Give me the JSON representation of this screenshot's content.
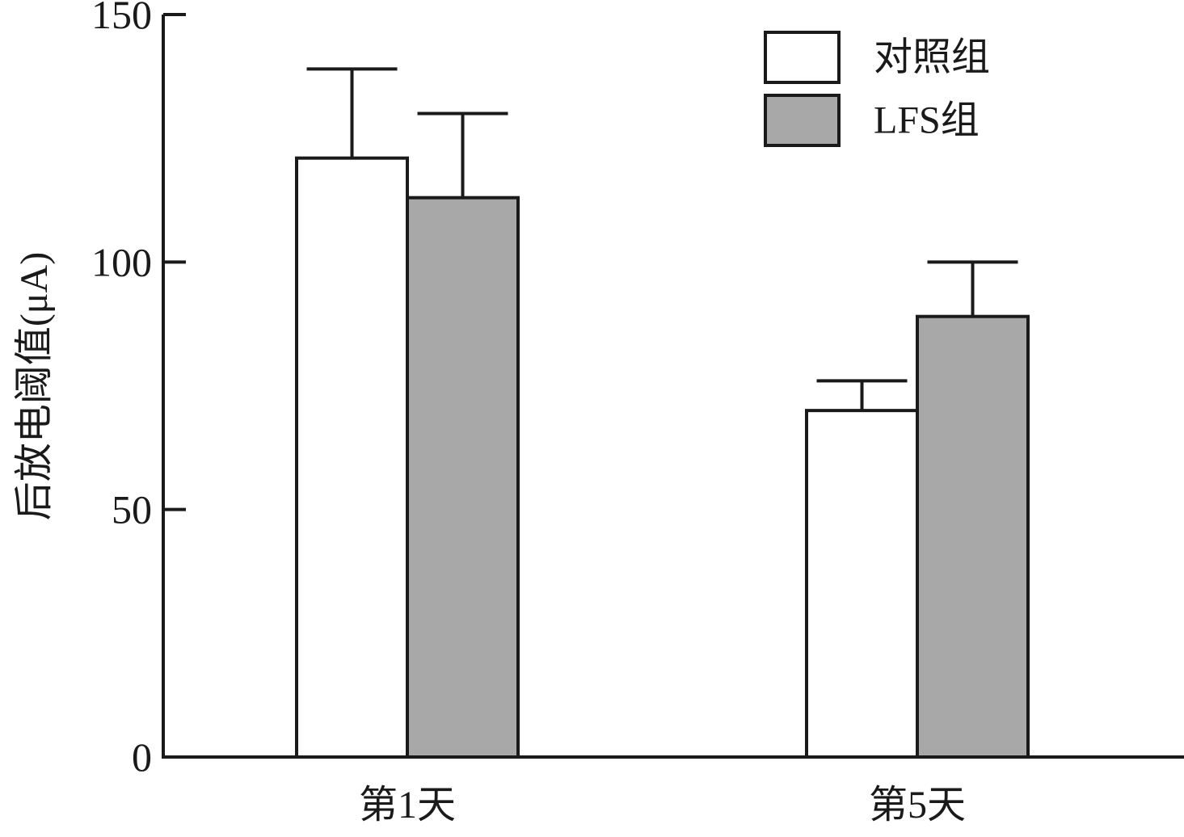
{
  "chart_data": {
    "type": "bar",
    "categories": [
      "第1天",
      "第5天"
    ],
    "series": [
      {
        "name": "对照组",
        "values": [
          121,
          70
        ],
        "error": [
          18,
          6
        ],
        "color": "#ffffff"
      },
      {
        "name": "LFS组",
        "values": [
          113,
          89
        ],
        "error": [
          17,
          11
        ],
        "color": "#a8a8a8"
      }
    ],
    "ylabel": "后放电阈值(μA)",
    "ylim": [
      0,
      150
    ],
    "yticks": [
      0,
      50,
      100,
      150
    ],
    "legend_position": "top-right",
    "grid": false
  }
}
